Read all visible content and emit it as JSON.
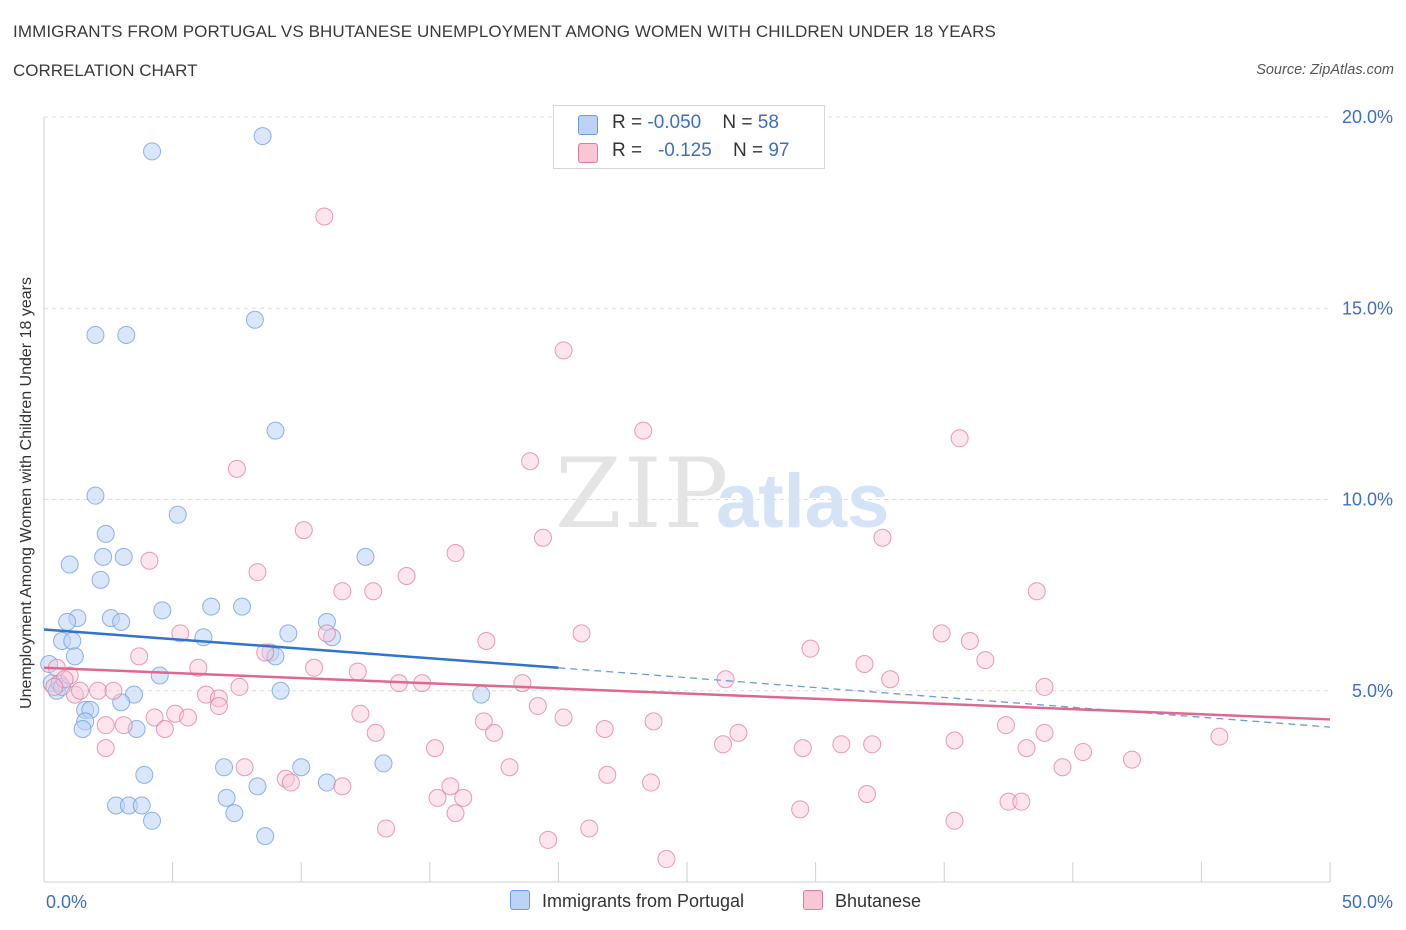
{
  "header": {
    "title": "IMMIGRANTS FROM PORTUGAL VS BHUTANESE UNEMPLOYMENT AMONG WOMEN WITH CHILDREN UNDER 18 YEARS",
    "subtitle": "CORRELATION CHART",
    "source": "Source: ZipAtlas.com"
  },
  "legend": {
    "r_label": "R = ",
    "n_label": "N = ",
    "series": [
      {
        "name": "Immigrants from Portugal",
        "r": "-0.050",
        "n": "58",
        "color": "#6a9be0",
        "fill": "#bcd3f5"
      },
      {
        "name": "Bhutanese",
        "r": "-0.125",
        "n": "97",
        "color": "#e07b9f",
        "fill": "#f8c6d5"
      }
    ]
  },
  "watermark": {
    "zip": "ZIP",
    "atlas": "atlas"
  },
  "chart_data": {
    "type": "scatter",
    "title": "IMMIGRANTS FROM PORTUGAL VS BHUTANESE UNEMPLOYMENT AMONG WOMEN WITH CHILDREN UNDER 18 YEARS",
    "xlabel": "",
    "ylabel": "Unemployment Among Women with Children Under 18 years",
    "xlim": [
      0,
      50
    ],
    "ylim": [
      0,
      20
    ],
    "x_ticks": [
      "0.0%",
      "50.0%"
    ],
    "y_ticks": [
      {
        "value": 5,
        "label": "5.0%"
      },
      {
        "value": 10,
        "label": "10.0%"
      },
      {
        "value": 15,
        "label": "15.0%"
      },
      {
        "value": 20,
        "label": "20.0%"
      }
    ],
    "grid": "horizontal dashed",
    "legend_position": "top-center",
    "series": [
      {
        "name": "Immigrants from Portugal",
        "color": "#6a9be0",
        "trend": {
          "x0": 0,
          "y0": 6.6,
          "x1": 20,
          "y1": 5.6,
          "dashed_to_x": 50,
          "dashed_to_y": 4.05
        },
        "points": [
          [
            4.2,
            19.1
          ],
          [
            8.5,
            19.5
          ],
          [
            2.0,
            14.3
          ],
          [
            3.2,
            14.3
          ],
          [
            8.2,
            14.7
          ],
          [
            9.0,
            11.8
          ],
          [
            2.0,
            10.1
          ],
          [
            2.4,
            9.1
          ],
          [
            5.2,
            9.6
          ],
          [
            1.0,
            8.3
          ],
          [
            2.3,
            8.5
          ],
          [
            3.1,
            8.5
          ],
          [
            2.2,
            7.9
          ],
          [
            12.5,
            8.5
          ],
          [
            1.3,
            6.9
          ],
          [
            2.6,
            6.9
          ],
          [
            3.0,
            6.8
          ],
          [
            4.6,
            7.1
          ],
          [
            6.5,
            7.2
          ],
          [
            7.7,
            7.2
          ],
          [
            0.9,
            6.8
          ],
          [
            0.7,
            6.3
          ],
          [
            1.1,
            6.3
          ],
          [
            6.2,
            6.4
          ],
          [
            9.5,
            6.5
          ],
          [
            11.0,
            6.8
          ],
          [
            11.2,
            6.4
          ],
          [
            1.2,
            5.9
          ],
          [
            8.8,
            6.0
          ],
          [
            9.0,
            5.9
          ],
          [
            4.5,
            5.4
          ],
          [
            0.3,
            5.2
          ],
          [
            0.5,
            5.0
          ],
          [
            0.6,
            5.2
          ],
          [
            0.7,
            5.1
          ],
          [
            3.5,
            4.9
          ],
          [
            3.0,
            4.7
          ],
          [
            9.2,
            5.0
          ],
          [
            17.0,
            4.9
          ],
          [
            1.6,
            4.5
          ],
          [
            1.8,
            4.5
          ],
          [
            1.6,
            4.2
          ],
          [
            1.5,
            4.0
          ],
          [
            3.6,
            4.0
          ],
          [
            7.0,
            3.0
          ],
          [
            10.0,
            3.0
          ],
          [
            13.2,
            3.1
          ],
          [
            3.9,
            2.8
          ],
          [
            8.3,
            2.5
          ],
          [
            11.0,
            2.6
          ],
          [
            7.1,
            2.2
          ],
          [
            2.8,
            2.0
          ],
          [
            3.3,
            2.0
          ],
          [
            3.8,
            2.0
          ],
          [
            7.4,
            1.8
          ],
          [
            4.2,
            1.6
          ],
          [
            8.6,
            1.2
          ],
          [
            0.2,
            5.7
          ]
        ]
      },
      {
        "name": "Bhutanese",
        "color": "#e07b9f",
        "trend": {
          "x0": 0,
          "y0": 5.6,
          "x1": 50,
          "y1": 4.25
        },
        "points": [
          [
            10.9,
            17.4
          ],
          [
            20.2,
            13.9
          ],
          [
            23.3,
            11.8
          ],
          [
            35.6,
            11.6
          ],
          [
            7.5,
            10.8
          ],
          [
            18.9,
            11.0
          ],
          [
            10.1,
            9.2
          ],
          [
            19.4,
            9.0
          ],
          [
            16.0,
            8.6
          ],
          [
            32.6,
            9.0
          ],
          [
            4.1,
            8.4
          ],
          [
            8.3,
            8.1
          ],
          [
            14.1,
            8.0
          ],
          [
            11.6,
            7.6
          ],
          [
            12.8,
            7.6
          ],
          [
            38.6,
            7.6
          ],
          [
            5.3,
            6.5
          ],
          [
            11.0,
            6.5
          ],
          [
            17.2,
            6.3
          ],
          [
            20.9,
            6.5
          ],
          [
            29.8,
            6.1
          ],
          [
            34.9,
            6.5
          ],
          [
            36.0,
            6.3
          ],
          [
            3.7,
            5.9
          ],
          [
            8.6,
            6.0
          ],
          [
            36.6,
            5.8
          ],
          [
            6.0,
            5.6
          ],
          [
            10.5,
            5.6
          ],
          [
            12.2,
            5.5
          ],
          [
            31.9,
            5.7
          ],
          [
            1.0,
            5.4
          ],
          [
            2.1,
            5.0
          ],
          [
            2.7,
            5.0
          ],
          [
            6.3,
            4.9
          ],
          [
            6.8,
            4.8
          ],
          [
            7.6,
            5.1
          ],
          [
            13.8,
            5.2
          ],
          [
            14.7,
            5.2
          ],
          [
            18.6,
            5.2
          ],
          [
            26.5,
            5.3
          ],
          [
            32.9,
            5.3
          ],
          [
            38.9,
            5.1
          ],
          [
            1.2,
            4.9
          ],
          [
            6.8,
            4.6
          ],
          [
            12.3,
            4.4
          ],
          [
            4.3,
            4.3
          ],
          [
            5.1,
            4.4
          ],
          [
            5.6,
            4.3
          ],
          [
            17.1,
            4.2
          ],
          [
            19.2,
            4.6
          ],
          [
            20.2,
            4.3
          ],
          [
            23.7,
            4.2
          ],
          [
            2.4,
            4.1
          ],
          [
            3.1,
            4.1
          ],
          [
            4.7,
            4.0
          ],
          [
            12.9,
            3.9
          ],
          [
            17.5,
            3.9
          ],
          [
            21.8,
            4.0
          ],
          [
            27.0,
            3.9
          ],
          [
            37.4,
            4.1
          ],
          [
            38.9,
            3.9
          ],
          [
            2.4,
            3.5
          ],
          [
            15.2,
            3.5
          ],
          [
            26.4,
            3.6
          ],
          [
            31.0,
            3.6
          ],
          [
            35.4,
            3.7
          ],
          [
            38.2,
            3.5
          ],
          [
            40.4,
            3.4
          ],
          [
            45.7,
            3.8
          ],
          [
            7.8,
            3.0
          ],
          [
            18.1,
            3.0
          ],
          [
            21.9,
            2.8
          ],
          [
            32.2,
            3.6
          ],
          [
            39.6,
            3.0
          ],
          [
            42.3,
            3.2
          ],
          [
            9.4,
            2.7
          ],
          [
            9.6,
            2.6
          ],
          [
            11.6,
            2.5
          ],
          [
            15.8,
            2.5
          ],
          [
            16.3,
            2.2
          ],
          [
            23.6,
            2.6
          ],
          [
            32.0,
            2.3
          ],
          [
            29.4,
            1.9
          ],
          [
            15.3,
            2.2
          ],
          [
            37.5,
            2.1
          ],
          [
            38.0,
            2.1
          ],
          [
            16.0,
            1.8
          ],
          [
            13.3,
            1.4
          ],
          [
            21.2,
            1.4
          ],
          [
            35.4,
            1.6
          ],
          [
            19.6,
            1.1
          ],
          [
            24.2,
            0.6
          ],
          [
            0.5,
            5.6
          ],
          [
            0.8,
            5.3
          ],
          [
            0.4,
            5.1
          ],
          [
            1.4,
            5.0
          ],
          [
            29.5,
            3.5
          ]
        ]
      }
    ]
  }
}
